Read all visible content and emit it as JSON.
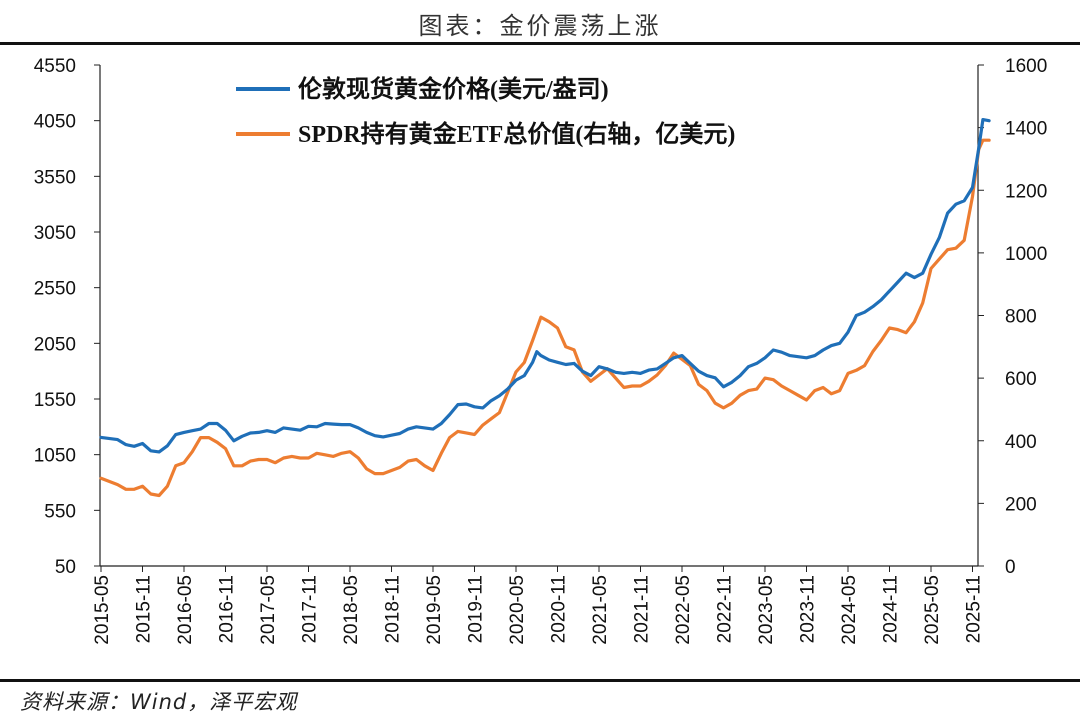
{
  "page": {
    "title": "图表：金价震荡上涨",
    "source": "资料来源：Wind，泽平宏观"
  },
  "colors": {
    "gold_line": "#1f6fb8",
    "etf_line": "#ed7d31",
    "axis": "#222222"
  },
  "chart_data": {
    "type": "line",
    "x_tick_labels": [
      "2015-05",
      "2015-11",
      "2016-05",
      "2016-11",
      "2017-05",
      "2017-11",
      "2018-05",
      "2018-11",
      "2019-05",
      "2019-11",
      "2020-05",
      "2020-11",
      "2021-05",
      "2021-11",
      "2022-05",
      "2022-11",
      "2023-05",
      "2023-11",
      "2024-05",
      "2024-11",
      "2025-05",
      "2025-11"
    ],
    "x_range": [
      0,
      21.4
    ],
    "y_left": {
      "min": 50,
      "max": 4550,
      "ticks": [
        50,
        550,
        1050,
        1550,
        2050,
        2550,
        3050,
        3550,
        4050,
        4550
      ]
    },
    "y_right": {
      "min": 0,
      "max": 1600,
      "ticks": [
        0,
        200,
        400,
        600,
        800,
        1000,
        1200,
        1400,
        1600
      ]
    },
    "legend": {
      "position": "top-left"
    },
    "series": [
      {
        "name": "伦敦现货黄金价格(美元/盎司)",
        "axis": "left",
        "color_key": "gold_line",
        "points": [
          [
            0.0,
            1205
          ],
          [
            0.4,
            1185
          ],
          [
            0.6,
            1140
          ],
          [
            0.8,
            1125
          ],
          [
            1.0,
            1150
          ],
          [
            1.2,
            1085
          ],
          [
            1.4,
            1075
          ],
          [
            1.6,
            1130
          ],
          [
            1.8,
            1230
          ],
          [
            2.0,
            1250
          ],
          [
            2.2,
            1265
          ],
          [
            2.4,
            1280
          ],
          [
            2.6,
            1330
          ],
          [
            2.8,
            1330
          ],
          [
            3.0,
            1270
          ],
          [
            3.2,
            1175
          ],
          [
            3.4,
            1215
          ],
          [
            3.6,
            1245
          ],
          [
            3.8,
            1250
          ],
          [
            4.0,
            1265
          ],
          [
            4.2,
            1250
          ],
          [
            4.4,
            1290
          ],
          [
            4.6,
            1280
          ],
          [
            4.8,
            1270
          ],
          [
            5.0,
            1305
          ],
          [
            5.2,
            1300
          ],
          [
            5.4,
            1330
          ],
          [
            5.6,
            1325
          ],
          [
            5.8,
            1320
          ],
          [
            6.0,
            1320
          ],
          [
            6.2,
            1290
          ],
          [
            6.4,
            1250
          ],
          [
            6.6,
            1220
          ],
          [
            6.8,
            1210
          ],
          [
            7.0,
            1225
          ],
          [
            7.2,
            1240
          ],
          [
            7.4,
            1280
          ],
          [
            7.6,
            1300
          ],
          [
            7.8,
            1290
          ],
          [
            8.0,
            1280
          ],
          [
            8.2,
            1330
          ],
          [
            8.4,
            1410
          ],
          [
            8.6,
            1500
          ],
          [
            8.8,
            1505
          ],
          [
            9.0,
            1480
          ],
          [
            9.2,
            1470
          ],
          [
            9.4,
            1535
          ],
          [
            9.6,
            1580
          ],
          [
            9.8,
            1640
          ],
          [
            10.0,
            1720
          ],
          [
            10.2,
            1760
          ],
          [
            10.4,
            1880
          ],
          [
            10.5,
            1975
          ],
          [
            10.6,
            1940
          ],
          [
            10.8,
            1900
          ],
          [
            11.0,
            1880
          ],
          [
            11.2,
            1860
          ],
          [
            11.4,
            1870
          ],
          [
            11.6,
            1800
          ],
          [
            11.8,
            1760
          ],
          [
            12.0,
            1840
          ],
          [
            12.2,
            1820
          ],
          [
            12.4,
            1790
          ],
          [
            12.6,
            1780
          ],
          [
            12.8,
            1790
          ],
          [
            13.0,
            1780
          ],
          [
            13.2,
            1810
          ],
          [
            13.4,
            1820
          ],
          [
            13.6,
            1870
          ],
          [
            13.8,
            1920
          ],
          [
            14.0,
            1940
          ],
          [
            14.2,
            1870
          ],
          [
            14.4,
            1800
          ],
          [
            14.6,
            1760
          ],
          [
            14.8,
            1740
          ],
          [
            15.0,
            1660
          ],
          [
            15.2,
            1700
          ],
          [
            15.4,
            1760
          ],
          [
            15.6,
            1840
          ],
          [
            15.8,
            1870
          ],
          [
            16.0,
            1920
          ],
          [
            16.2,
            1990
          ],
          [
            16.4,
            1970
          ],
          [
            16.6,
            1940
          ],
          [
            16.8,
            1930
          ],
          [
            17.0,
            1920
          ],
          [
            17.2,
            1940
          ],
          [
            17.4,
            1990
          ],
          [
            17.6,
            2030
          ],
          [
            17.8,
            2050
          ],
          [
            18.0,
            2150
          ],
          [
            18.2,
            2300
          ],
          [
            18.4,
            2330
          ],
          [
            18.6,
            2380
          ],
          [
            18.8,
            2440
          ],
          [
            19.0,
            2520
          ],
          [
            19.2,
            2600
          ],
          [
            19.4,
            2680
          ],
          [
            19.6,
            2640
          ],
          [
            19.8,
            2680
          ],
          [
            20.0,
            2850
          ],
          [
            20.2,
            3000
          ],
          [
            20.4,
            3220
          ],
          [
            20.6,
            3300
          ],
          [
            20.8,
            3330
          ],
          [
            21.0,
            3450
          ],
          [
            21.15,
            3800
          ],
          [
            21.25,
            4060
          ],
          [
            21.4,
            4050
          ]
        ]
      },
      {
        "name": "SPDR持有黄金ETF总价值(右轴，亿美元)",
        "axis": "right",
        "color_key": "etf_line",
        "points": [
          [
            0.0,
            280
          ],
          [
            0.4,
            260
          ],
          [
            0.6,
            245
          ],
          [
            0.8,
            245
          ],
          [
            1.0,
            255
          ],
          [
            1.2,
            230
          ],
          [
            1.4,
            225
          ],
          [
            1.6,
            255
          ],
          [
            1.8,
            320
          ],
          [
            2.0,
            330
          ],
          [
            2.2,
            365
          ],
          [
            2.4,
            410
          ],
          [
            2.6,
            410
          ],
          [
            2.8,
            395
          ],
          [
            3.0,
            375
          ],
          [
            3.2,
            320
          ],
          [
            3.4,
            320
          ],
          [
            3.6,
            335
          ],
          [
            3.8,
            340
          ],
          [
            4.0,
            340
          ],
          [
            4.2,
            330
          ],
          [
            4.4,
            345
          ],
          [
            4.6,
            350
          ],
          [
            4.8,
            345
          ],
          [
            5.0,
            345
          ],
          [
            5.2,
            360
          ],
          [
            5.4,
            355
          ],
          [
            5.6,
            350
          ],
          [
            5.8,
            360
          ],
          [
            6.0,
            365
          ],
          [
            6.2,
            345
          ],
          [
            6.4,
            310
          ],
          [
            6.6,
            295
          ],
          [
            6.8,
            295
          ],
          [
            7.0,
            305
          ],
          [
            7.2,
            315
          ],
          [
            7.4,
            335
          ],
          [
            7.6,
            340
          ],
          [
            7.8,
            320
          ],
          [
            8.0,
            305
          ],
          [
            8.2,
            360
          ],
          [
            8.4,
            410
          ],
          [
            8.6,
            430
          ],
          [
            8.8,
            425
          ],
          [
            9.0,
            420
          ],
          [
            9.2,
            450
          ],
          [
            9.4,
            470
          ],
          [
            9.6,
            490
          ],
          [
            9.8,
            555
          ],
          [
            10.0,
            620
          ],
          [
            10.2,
            650
          ],
          [
            10.4,
            720
          ],
          [
            10.6,
            795
          ],
          [
            10.8,
            780
          ],
          [
            11.0,
            760
          ],
          [
            11.2,
            700
          ],
          [
            11.4,
            690
          ],
          [
            11.6,
            620
          ],
          [
            11.8,
            590
          ],
          [
            12.0,
            610
          ],
          [
            12.2,
            630
          ],
          [
            12.4,
            600
          ],
          [
            12.6,
            570
          ],
          [
            12.8,
            575
          ],
          [
            13.0,
            575
          ],
          [
            13.2,
            590
          ],
          [
            13.4,
            610
          ],
          [
            13.6,
            640
          ],
          [
            13.8,
            680
          ],
          [
            14.0,
            660
          ],
          [
            14.2,
            640
          ],
          [
            14.4,
            580
          ],
          [
            14.6,
            560
          ],
          [
            14.8,
            520
          ],
          [
            15.0,
            505
          ],
          [
            15.2,
            520
          ],
          [
            15.4,
            545
          ],
          [
            15.6,
            560
          ],
          [
            15.8,
            565
          ],
          [
            16.0,
            600
          ],
          [
            16.2,
            595
          ],
          [
            16.4,
            575
          ],
          [
            16.6,
            560
          ],
          [
            16.8,
            545
          ],
          [
            17.0,
            530
          ],
          [
            17.2,
            560
          ],
          [
            17.4,
            570
          ],
          [
            17.6,
            550
          ],
          [
            17.8,
            560
          ],
          [
            18.0,
            615
          ],
          [
            18.2,
            625
          ],
          [
            18.4,
            640
          ],
          [
            18.6,
            685
          ],
          [
            18.8,
            720
          ],
          [
            19.0,
            760
          ],
          [
            19.2,
            755
          ],
          [
            19.4,
            745
          ],
          [
            19.6,
            780
          ],
          [
            19.8,
            840
          ],
          [
            20.0,
            950
          ],
          [
            20.2,
            980
          ],
          [
            20.4,
            1010
          ],
          [
            20.6,
            1015
          ],
          [
            20.8,
            1040
          ],
          [
            21.0,
            1180
          ],
          [
            21.15,
            1330
          ],
          [
            21.25,
            1360
          ],
          [
            21.4,
            1360
          ]
        ]
      }
    ]
  }
}
